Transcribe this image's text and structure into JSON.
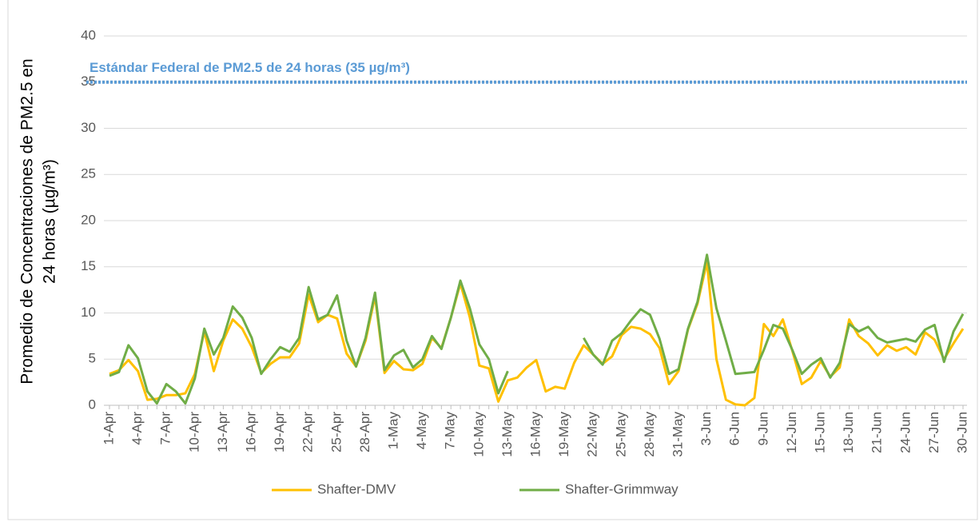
{
  "chart_data": {
    "type": "line",
    "y_label": [
      "Promedio de Concentraciones de PM2.5 en",
      "24 horas (µg/m³)"
    ],
    "categories": [
      "1-Apr",
      null,
      null,
      "4-Apr",
      null,
      null,
      "7-Apr",
      null,
      null,
      "10-Apr",
      null,
      null,
      "13-Apr",
      null,
      null,
      "16-Apr",
      null,
      null,
      "19-Apr",
      null,
      null,
      "22-Apr",
      null,
      null,
      "25-Apr",
      null,
      null,
      "28-Apr",
      null,
      null,
      "1-May",
      null,
      null,
      "4-May",
      null,
      null,
      "7-May",
      null,
      null,
      "10-May",
      null,
      null,
      "13-May",
      null,
      null,
      "16-May",
      null,
      null,
      "19-May",
      null,
      null,
      "22-May",
      null,
      null,
      "25-May",
      null,
      null,
      "28-May",
      null,
      null,
      "31-May",
      null,
      null,
      "3-Jun",
      null,
      null,
      "6-Jun",
      null,
      null,
      "9-Jun",
      null,
      null,
      "12-Jun",
      null,
      null,
      "15-Jun",
      null,
      null,
      "18-Jun",
      null,
      null,
      "21-Jun",
      null,
      null,
      "24-Jun",
      null,
      null,
      "27-Jun",
      null,
      null,
      "30-Jun"
    ],
    "series": [
      {
        "name": "Shafter-DMV",
        "color": "#ffc000",
        "values": [
          3.4,
          3.8,
          4.9,
          3.7,
          0.6,
          0.7,
          1.1,
          1.1,
          1.3,
          3.4,
          8.0,
          3.7,
          7.0,
          9.3,
          8.3,
          6.3,
          3.5,
          4.5,
          5.2,
          5.2,
          6.7,
          12.0,
          9.0,
          9.8,
          9.4,
          5.6,
          4.2,
          7.0,
          11.8,
          3.5,
          4.8,
          3.9,
          3.8,
          4.5,
          7.3,
          6.2,
          9.5,
          13.2,
          9.5,
          4.3,
          4.0,
          0.4,
          2.7,
          3.0,
          4.1,
          4.9,
          1.5,
          2.0,
          1.8,
          4.6,
          6.5,
          5.5,
          4.5,
          5.3,
          7.6,
          8.5,
          8.3,
          7.7,
          6.2,
          2.3,
          3.7,
          8.2,
          11.0,
          15.5,
          5.0,
          0.6,
          0.1,
          0.0,
          0.8,
          8.8,
          7.5,
          9.3,
          5.9,
          2.3,
          3.0,
          4.8,
          3.1,
          4.1,
          9.3,
          7.5,
          6.7,
          5.4,
          6.5,
          5.9,
          6.3,
          5.5,
          7.9,
          7.1,
          5.0,
          6.7,
          8.3
        ]
      },
      {
        "name": "Shafter-Grimmway",
        "color": "#70ad47",
        "values": [
          3.2,
          3.6,
          6.5,
          5.1,
          1.5,
          0.2,
          2.3,
          1.5,
          0.2,
          2.9,
          8.3,
          5.5,
          7.3,
          10.7,
          9.5,
          7.3,
          3.4,
          5.0,
          6.3,
          5.8,
          7.3,
          12.8,
          9.3,
          9.8,
          11.9,
          7.0,
          4.2,
          7.3,
          12.2,
          3.8,
          5.4,
          6.0,
          4.1,
          5.0,
          7.5,
          6.1,
          9.5,
          13.5,
          10.5,
          6.6,
          5.0,
          1.3,
          3.7,
          null,
          null,
          null,
          null,
          null,
          null,
          null,
          7.3,
          5.5,
          4.4,
          7.0,
          7.8,
          9.2,
          10.4,
          9.8,
          7.2,
          3.4,
          3.9,
          8.3,
          11.2,
          16.3,
          10.5,
          7.0,
          3.4,
          3.5,
          3.6,
          6.0,
          8.7,
          8.3,
          6.0,
          3.4,
          4.4,
          5.1,
          3.0,
          4.6,
          8.8,
          8.0,
          8.5,
          7.3,
          6.8,
          7.0,
          7.2,
          6.9,
          8.2,
          8.7,
          4.7,
          8.0,
          9.9
        ]
      }
    ],
    "reference_line": {
      "value": 35,
      "label": "Estándar Federal de PM2.5 de 24 horas (35 µg/m³)",
      "color": "#5b9bd5"
    },
    "ylim": [
      0,
      40
    ],
    "yticks": [
      0,
      5,
      10,
      15,
      20,
      25,
      30,
      35,
      40
    ],
    "grid": true,
    "legend": "bottom"
  }
}
